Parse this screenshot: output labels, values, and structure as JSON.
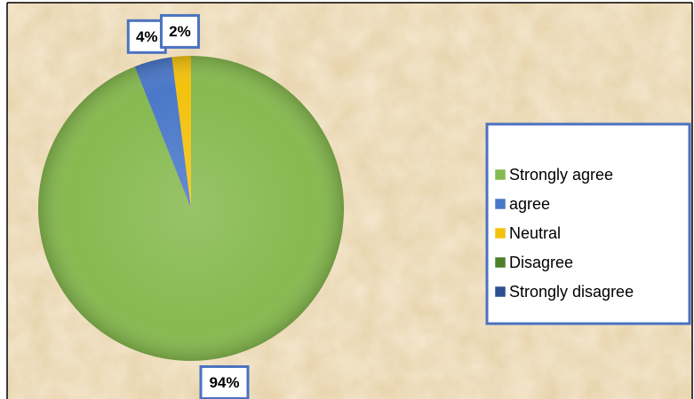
{
  "chart_data": {
    "type": "pie",
    "categories": [
      "Strongly agree",
      "agree",
      "Neutral",
      "Disagree",
      "Strongly disagree"
    ],
    "values": [
      94,
      4,
      2,
      0,
      0
    ],
    "value_labels": [
      "94%",
      "4%",
      "2%",
      null,
      null
    ],
    "colors": [
      "#86b94f",
      "#4a78c8",
      "#f3c20e",
      "#4f7f2a",
      "#2f4f8f"
    ],
    "legend": "right"
  }
}
